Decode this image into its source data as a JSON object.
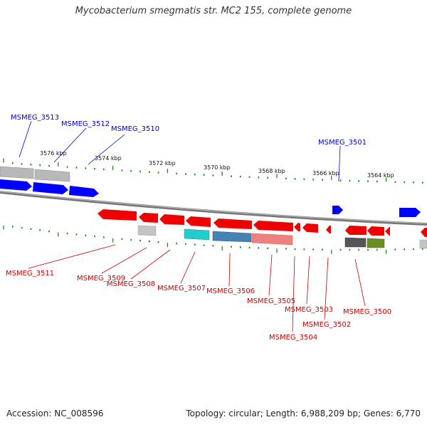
{
  "title": "Mycobacterium smegmatis str. MC2 155, complete genome",
  "footer": {
    "accession": "Accession: NC_008596",
    "summary": "Topology: circular; Length: 6,988,209 bp; Genes: 6,770"
  },
  "colors": {
    "forward_label": "#0000cc",
    "reverse_label": "#cc0000",
    "tick": "#228b22",
    "backbone": "#808080"
  },
  "scale_labels": [
    "3576 kbp",
    "3574 kbp",
    "3572 kbp",
    "3570 kbp",
    "3568 kbp",
    "3566 kbp",
    "3564 kbp"
  ],
  "forward_gene_labels": [
    "MSMEG_3513",
    "MSMEG_3512",
    "MSMEG_3510",
    "MSMEG_3501"
  ],
  "reverse_gene_labels": [
    "MSMEG_3511",
    "MSMEG_3509",
    "MSMEG_3508",
    "MSMEG_3507",
    "MSMEG_3506",
    "MSMEG_3505",
    "MSMEG_3503",
    "MSMEG_3504",
    "MSMEG_3502",
    "MSMEG_3500"
  ]
}
